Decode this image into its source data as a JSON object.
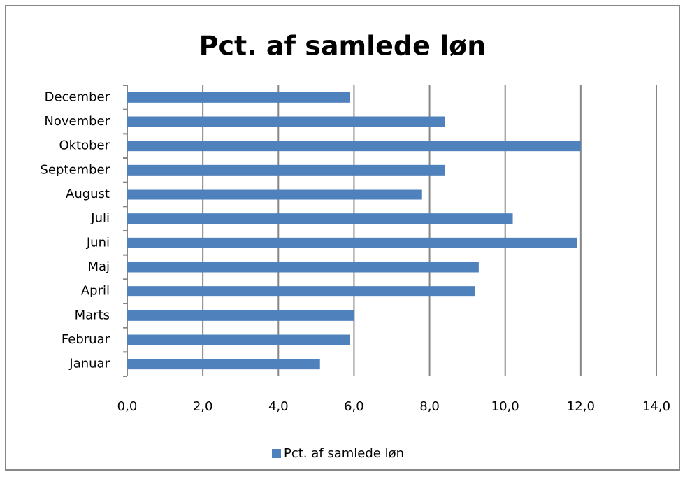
{
  "chart_data": {
    "type": "bar",
    "orientation": "horizontal",
    "title": "Pct. af samlede løn",
    "categories": [
      "Januar",
      "Februar",
      "Marts",
      "April",
      "Maj",
      "Juni",
      "Juli",
      "August",
      "September",
      "Oktober",
      "November",
      "December"
    ],
    "series": [
      {
        "name": "Pct. af samlede løn",
        "color": "#4f81bd",
        "values": [
          5.1,
          5.9,
          6.0,
          9.2,
          9.3,
          11.9,
          10.2,
          7.8,
          8.4,
          12.0,
          8.4,
          5.9
        ]
      }
    ],
    "xlim": [
      0,
      14
    ],
    "xticks": [
      {
        "value": 0,
        "label": "0,0"
      },
      {
        "value": 2,
        "label": "2,0"
      },
      {
        "value": 4,
        "label": "4,0"
      },
      {
        "value": 6,
        "label": "6,0"
      },
      {
        "value": 8,
        "label": "8,0"
      },
      {
        "value": 10,
        "label": "10,0"
      },
      {
        "value": 12,
        "label": "12,0"
      },
      {
        "value": 14,
        "label": "14,0"
      }
    ],
    "grid": true,
    "legend": "bottom"
  }
}
